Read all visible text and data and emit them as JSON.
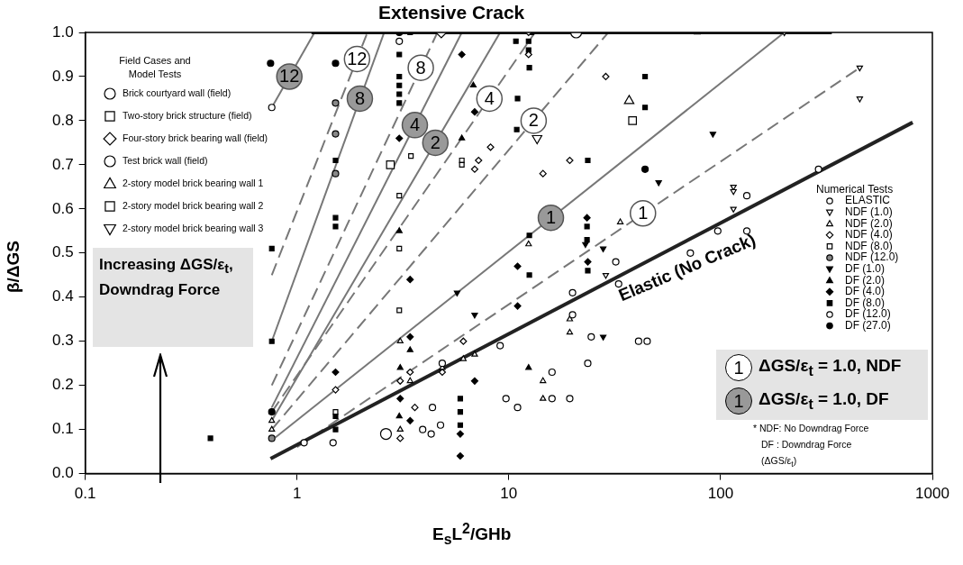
{
  "chart_data": {
    "type": "scatter",
    "xlabel": "E$_{s}$L$^{2}$/GHb",
    "ylabel": "β/ΔGS",
    "log": "x",
    "xlim": [
      0.1,
      1000
    ],
    "xticks": [
      0.1,
      1,
      10,
      100,
      1000
    ],
    "ylim": [
      0,
      1
    ],
    "yticks": [
      {
        "value": 0,
        "label": "0.0"
      },
      {
        "value": 0.1,
        "label": "0.1"
      },
      {
        "value": 0.2,
        "label": "0.2"
      },
      {
        "value": 0.3,
        "label": "0.3"
      },
      {
        "value": 0.4,
        "label": "0.4"
      },
      {
        "value": 0.5,
        "label": "0.5"
      },
      {
        "value": 0.6,
        "label": "0.6"
      },
      {
        "value": 0.7,
        "label": "0.7"
      },
      {
        "value": 0.8,
        "label": "0.8"
      },
      {
        "value": 0.9,
        "label": "0.9"
      },
      {
        "value": 1,
        "label": "1.0"
      }
    ],
    "grid": false,
    "legend": "top left",
    "annotations": [
      "Extensive Crack",
      "Elastic (No Crack)",
      "Increasing ΔGS/ε$_{t}$, Downdrag Force",
      "1",
      "ΔGS/ε$_{t}$ = 1.0, NDF",
      "1",
      "ΔGS/ε$_{t}$ = 1.0, DF",
      "* NDF: No Downdrag Force",
      "DF  : Downdrag Force",
      "(ΔGS/ε$_{t}$)",
      "Field Cases and Model Tests",
      "Numerical Tests",
      {
        "text": "12",
        "x": 1.92,
        "y": 0.94
      },
      {
        "text": "8",
        "x": 3.84,
        "y": 0.92
      },
      {
        "text": "4",
        "x": 8.1,
        "y": 0.85
      },
      {
        "text": "2",
        "x": 13.1,
        "y": 0.8
      },
      {
        "text": "1",
        "x": 43,
        "y": 0.59
      },
      {
        "text": "12",
        "x": 0.92,
        "y": 0.9
      },
      {
        "text": "8",
        "x": 1.98,
        "y": 0.85
      },
      {
        "text": "4",
        "x": 3.6,
        "y": 0.79
      },
      {
        "text": "2",
        "x": 4.5,
        "y": 0.75
      },
      {
        "text": "1",
        "x": 15.8,
        "y": 0.58
      }
    ],
    "series": [
      {
        "name": "Brick courtyard wall (field)",
        "marker": "circle",
        "color": "#ffffff",
        "x": [
          2.63
        ],
        "values": [
          0.09
        ]
      },
      {
        "name": "Two-story brick structure (field)",
        "marker": "square",
        "color": "#ffffff",
        "x": [
          2.76
        ],
        "values": [
          0.7
        ]
      },
      {
        "name": "Four-story brick bearing wall (field)",
        "marker": "diamond",
        "color": "#ffffff",
        "x": [
          4.8
        ],
        "values": [
          1.0
        ]
      },
      {
        "name": "Test brick wall (field)",
        "marker": "circle",
        "color": "#ffffff",
        "x": [
          20.8
        ],
        "values": [
          1.0
        ]
      },
      {
        "name": "2-story model brick bearing wall 1",
        "marker": "triangle",
        "color": "#ffffff",
        "x": [
          37
        ],
        "values": [
          0.845
        ]
      },
      {
        "name": "2-story model brick bearing wall 2",
        "marker": "square",
        "color": "#ffffff",
        "x": [
          38.4
        ],
        "values": [
          0.8
        ]
      },
      {
        "name": "2-story model brick bearing wall 3",
        "marker": "triangle-down",
        "color": "#ffffff",
        "x": [
          13.6
        ],
        "values": [
          0.76
        ]
      },
      {
        "name": "ELASTIC",
        "marker": "circle",
        "color": "#ffffff",
        "x": [
          1.08,
          1.48,
          4.36,
          3.92,
          4.3,
          4.76,
          4.85,
          9.1,
          9.7,
          11,
          16,
          16,
          19.4,
          20,
          20,
          23.6,
          24.5,
          33,
          133,
          133,
          97,
          72,
          290,
          32,
          41,
          45
        ],
        "values": [
          0.07,
          0.07,
          0.15,
          0.1,
          0.09,
          0.11,
          0.25,
          0.29,
          0.17,
          0.15,
          0.23,
          0.17,
          0.17,
          0.41,
          0.36,
          0.25,
          0.31,
          0.43,
          0.63,
          0.55,
          0.55,
          0.5,
          0.69,
          0.48,
          0.3,
          0.3
        ]
      },
      {
        "name": "NDF (1.0)",
        "marker": "triangle-down",
        "color": "#ffffff",
        "x": [
          115,
          115,
          115,
          454,
          454,
          200,
          28.7
        ],
        "values": [
          0.65,
          0.64,
          0.6,
          0.92,
          0.85,
          1.0,
          0.45
        ]
      },
      {
        "name": "NDF (2.0)",
        "marker": "triangle",
        "color": "#ffffff",
        "x": [
          33.6,
          12.4,
          19.4,
          19.4,
          14.5,
          14.5,
          6.1,
          6.9,
          3.07,
          3.42,
          3.07,
          4.85,
          0.76,
          0.76
        ],
        "values": [
          0.57,
          0.52,
          0.35,
          0.32,
          0.21,
          0.17,
          0.26,
          0.27,
          0.3,
          0.21,
          0.1,
          0.24,
          0.1,
          0.12
        ]
      },
      {
        "name": "NDF (4.0)",
        "marker": "diamond",
        "color": "#ffffff",
        "x": [
          28.7,
          12.4,
          12.4,
          19.4,
          14.5,
          8.2,
          7.2,
          6.9,
          6.1,
          4.85,
          3.42,
          3.07,
          3.6,
          3.07,
          1.52
        ],
        "values": [
          0.9,
          0.95,
          1.0,
          0.71,
          0.68,
          0.74,
          0.71,
          0.69,
          0.3,
          0.23,
          0.23,
          0.21,
          0.15,
          0.08,
          0.19
        ]
      },
      {
        "name": "NDF (8.0)",
        "marker": "square",
        "color": "#ffffff",
        "x": [
          3.45,
          3.04,
          3.04,
          6.0,
          6.0,
          3.04,
          1.52
        ],
        "values": [
          0.72,
          0.63,
          0.51,
          0.71,
          0.7,
          0.37,
          0.14
        ]
      },
      {
        "name": "NDF (12.0)",
        "marker": "circle",
        "color": "#888888",
        "x": [
          1.52,
          1.52,
          1.52,
          0.76
        ],
        "values": [
          0.84,
          0.77,
          0.68,
          0.08
        ]
      },
      {
        "name": "DF (1.0)",
        "marker": "triangle-down",
        "color": "#000000",
        "x": [
          92,
          51,
          5.7,
          6.9,
          27.9,
          23,
          27.9
        ],
        "values": [
          0.77,
          0.66,
          0.41,
          0.36,
          0.31,
          0.52,
          0.51
        ]
      },
      {
        "name": "DF (2.0)",
        "marker": "triangle",
        "color": "#000000",
        "x": [
          6.8,
          6.0,
          3.04,
          3.42,
          3.07,
          3.04,
          12.4,
          0.76,
          77.6
        ],
        "values": [
          0.88,
          0.76,
          0.55,
          0.28,
          0.24,
          0.13,
          0.24,
          0.14,
          1.0
        ]
      },
      {
        "name": "DF (4.0)",
        "marker": "diamond",
        "color": "#000000",
        "x": [
          6.0,
          6.9,
          3.04,
          11,
          23.4,
          23.6,
          3.42,
          1.52,
          3.42,
          11,
          6.9,
          3.42,
          5.9,
          5.9,
          3.07
        ],
        "values": [
          0.95,
          0.82,
          0.76,
          0.47,
          0.58,
          0.48,
          0.44,
          0.23,
          0.31,
          0.38,
          0.21,
          0.12,
          0.09,
          0.04,
          0.17
        ]
      },
      {
        "name": "DF (8.0)",
        "marker": "square",
        "color": "#000000",
        "x": [
          0.39,
          0.76,
          0.76,
          1.52,
          1.52,
          1.52,
          1.52,
          1.52,
          3.04,
          3.04,
          3.04,
          3.04,
          3.04,
          3.42,
          5.9,
          5.9,
          5.9,
          10.8,
          12.8,
          12.4,
          12.4,
          12.5,
          11,
          10.9,
          23.6,
          12.5,
          12.5,
          23.4,
          23.4,
          23.6,
          44,
          44
        ],
        "values": [
          0.08,
          0.3,
          0.51,
          0.71,
          0.58,
          0.56,
          0.13,
          0.1,
          0.95,
          0.9,
          0.88,
          0.86,
          0.84,
          1.0,
          0.17,
          0.14,
          0.11,
          0.98,
          1.0,
          0.98,
          0.96,
          0.92,
          0.85,
          0.78,
          0.71,
          0.54,
          0.45,
          0.56,
          0.53,
          0.46,
          0.9,
          0.83
        ]
      },
      {
        "name": "DF (12.0)",
        "marker": "circle",
        "color": "#ffffff",
        "x": [
          0.76,
          3.04
        ],
        "values": [
          0.83,
          0.98
        ]
      },
      {
        "name": "DF (27.0)",
        "marker": "circle",
        "color": "#000000",
        "x": [
          0.75,
          1.52,
          3.04,
          44,
          0.76
        ],
        "values": [
          0.93,
          0.93,
          1.0,
          0.69,
          0.14
        ]
      },
      {
        "type": "line",
        "line_style": "solid",
        "color": "#000000",
        "x": [
          1.17,
          335
        ],
        "values": [
          1.0,
          1.0
        ]
      },
      {
        "type": "line",
        "line_style": "solid",
        "color": "#222222",
        "x": [
          0.75,
          807
        ],
        "values": [
          0.034,
          0.796
        ]
      },
      {
        "type": "line",
        "line_style": "solid",
        "color": "#777777",
        "x": [
          0.79,
          200
        ],
        "values": [
          0.082,
          1.0
        ]
      },
      {
        "type": "line",
        "line_style": "dashed",
        "color": "#777777",
        "x": [
          1.0,
          454
        ],
        "values": [
          0.06,
          0.92
        ]
      },
      {
        "type": "line",
        "line_style": "dashed",
        "color": "#777777",
        "x": [
          0.76,
          29.5
        ],
        "values": [
          0.1,
          1.0
        ]
      },
      {
        "type": "line",
        "line_style": "solid",
        "color": "#777777",
        "x": [
          0.76,
          9.1
        ],
        "values": [
          0.12,
          1.0
        ]
      },
      {
        "type": "line",
        "line_style": "dashed",
        "color": "#777777",
        "x": [
          0.76,
          13.3
        ],
        "values": [
          0.14,
          1.0
        ]
      },
      {
        "type": "line",
        "line_style": "solid",
        "color": "#777777",
        "x": [
          0.76,
          6.0
        ],
        "values": [
          0.15,
          1.0
        ]
      },
      {
        "type": "line",
        "line_style": "dashed",
        "color": "#777777",
        "x": [
          0.76,
          4.6
        ],
        "values": [
          0.2,
          1.0
        ]
      },
      {
        "type": "line",
        "line_style": "solid",
        "color": "#777777",
        "x": [
          0.76,
          2.58
        ],
        "values": [
          0.3,
          1.0
        ]
      },
      {
        "type": "line",
        "line_style": "dashed",
        "color": "#777777",
        "x": [
          0.76,
          2.15
        ],
        "values": [
          0.45,
          1.0
        ]
      },
      {
        "type": "line",
        "line_style": "solid",
        "color": "#777777",
        "x": [
          0.76,
          1.21
        ],
        "values": [
          0.83,
          1.0
        ]
      },
      {
        "marker": "circle",
        "x": [
          1.92,
          3.84,
          8.1,
          13.1,
          43,
          0.92,
          1.98,
          3.6,
          4.5,
          15.8
        ],
        "values": [
          0.94,
          0.92,
          0.85,
          0.8,
          0.59,
          0.9,
          0.85,
          0.79,
          0.75,
          0.58
        ],
        "colors": [
          "#ffffff",
          "#ffffff",
          "#ffffff",
          "#ffffff",
          "#ffffff",
          "#999999",
          "#999999",
          "#999999",
          "#999999",
          "#999999"
        ]
      }
    ]
  }
}
